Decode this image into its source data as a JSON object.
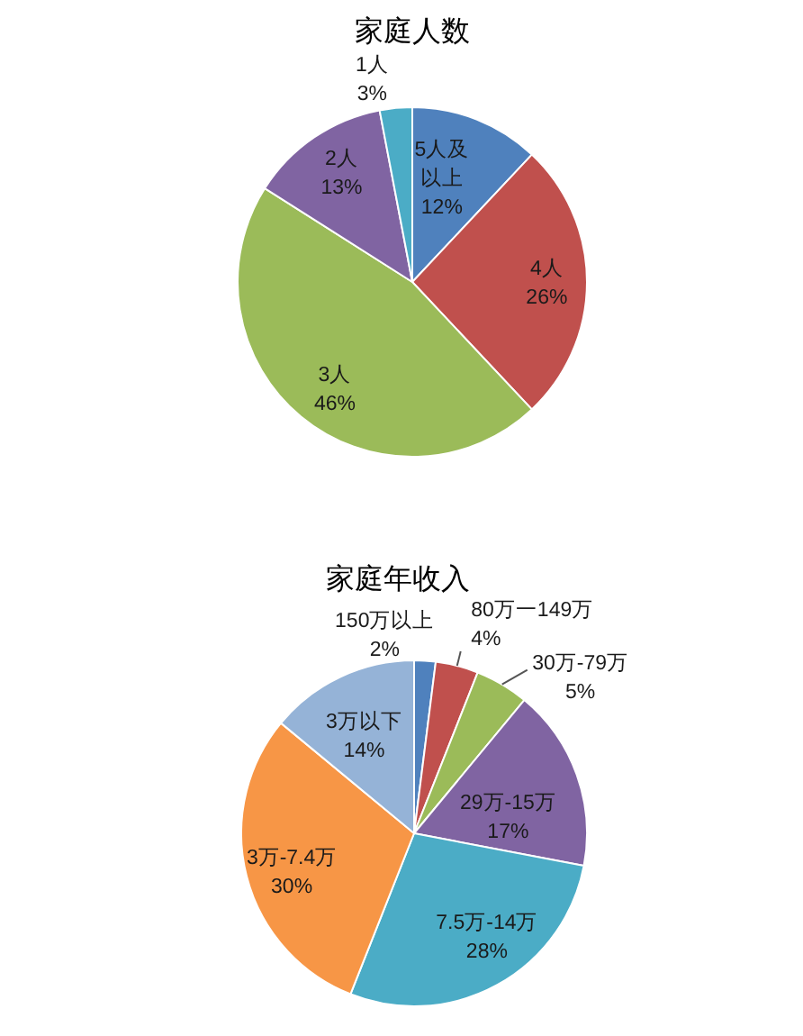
{
  "chart_data": [
    {
      "type": "pie",
      "title": "家庭人数",
      "categories": [
        "5人及以上",
        "4人",
        "3人",
        "2人",
        "1人"
      ],
      "values": [
        12,
        26,
        46,
        13,
        3
      ],
      "colors": [
        "#4f81bd",
        "#c0504d",
        "#9bbb59",
        "#8064a2",
        "#4bacc6"
      ],
      "value_labels": [
        "12%",
        "26%",
        "46%",
        "13%",
        "3%"
      ]
    },
    {
      "type": "pie",
      "title": "家庭年收入",
      "categories": [
        "150万以上",
        "80万一149万",
        "30万-79万",
        "29万-15万",
        "7.5万-14万",
        "3万-7.4万",
        "3万以下"
      ],
      "values": [
        2,
        4,
        5,
        17,
        28,
        30,
        14
      ],
      "colors": [
        "#4f81bd",
        "#c0504d",
        "#9bbb59",
        "#8064a2",
        "#4bacc6",
        "#f79646",
        "#95b3d7"
      ],
      "value_labels": [
        "2%",
        "4%",
        "5%",
        "17%",
        "28%",
        "30%",
        "14%"
      ]
    }
  ]
}
